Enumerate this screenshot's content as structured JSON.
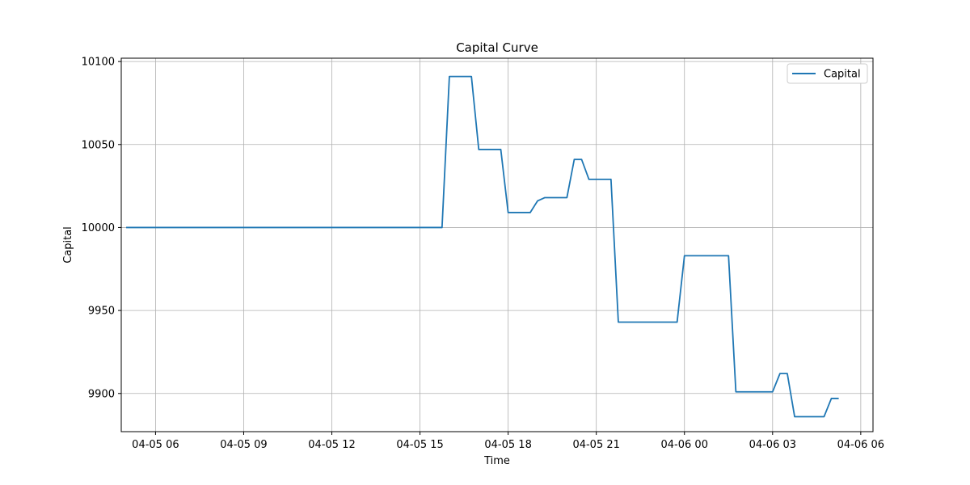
{
  "chart_data": {
    "type": "line",
    "title": "Capital Curve",
    "xlabel": "Time",
    "ylabel": "Capital",
    "xlim": [
      "04-05 04:50",
      "04-06 06:25"
    ],
    "ylim": [
      9877,
      10102
    ],
    "x_ticks": [
      "04-05 06:00",
      "04-05 09:00",
      "04-05 12:00",
      "04-05 15:00",
      "04-05 18:00",
      "04-05 21:00",
      "04-06 00:00",
      "04-06 03:00",
      "04-06 06:00"
    ],
    "x_tick_labels": [
      "04-05 06",
      "04-05 09",
      "04-05 12",
      "04-05 15",
      "04-05 18",
      "04-05 21",
      "04-06 00",
      "04-06 03",
      "04-06 06"
    ],
    "y_ticks": [
      9900,
      9950,
      10000,
      10050,
      10100
    ],
    "y_tick_labels": [
      "9900",
      "9950",
      "10000",
      "10050",
      "10100"
    ],
    "grid": true,
    "legend": "top-right",
    "series": [
      {
        "name": "Capital",
        "color": "#1f77b4",
        "x": [
          "04-05 05:00",
          "04-05 15:30",
          "04-05 15:45",
          "04-05 16:00",
          "04-05 16:15",
          "04-05 16:30",
          "04-05 16:45",
          "04-05 17:00",
          "04-05 17:15",
          "04-05 17:30",
          "04-05 17:45",
          "04-05 18:00",
          "04-05 18:15",
          "04-05 18:30",
          "04-05 18:45",
          "04-05 19:00",
          "04-05 19:15",
          "04-05 19:30",
          "04-05 19:45",
          "04-05 20:00",
          "04-05 20:15",
          "04-05 20:30",
          "04-05 20:45",
          "04-05 21:00",
          "04-05 21:15",
          "04-05 21:30",
          "04-05 21:45",
          "04-05 22:00",
          "04-05 22:15",
          "04-05 22:30",
          "04-05 22:45",
          "04-05 23:00",
          "04-05 23:15",
          "04-05 23:30",
          "04-05 23:45",
          "04-06 00:00",
          "04-06 00:15",
          "04-06 00:30",
          "04-06 00:45",
          "04-06 01:00",
          "04-06 01:15",
          "04-06 01:30",
          "04-06 01:45",
          "04-06 02:00",
          "04-06 02:15",
          "04-06 02:30",
          "04-06 02:45",
          "04-06 03:00",
          "04-06 03:15",
          "04-06 03:30",
          "04-06 03:45",
          "04-06 04:00",
          "04-06 04:15",
          "04-06 04:30",
          "04-06 04:45",
          "04-06 05:00",
          "04-06 05:15"
        ],
        "y": [
          10000,
          10000,
          10000,
          10091,
          10091,
          10091,
          10091,
          10047,
          10047,
          10047,
          10047,
          10009,
          10009,
          10009,
          10009,
          10016,
          10018,
          10018,
          10018,
          10018,
          10041,
          10041,
          10029,
          10029,
          10029,
          10029,
          9943,
          9943,
          9943,
          9943,
          9943,
          9943,
          9943,
          9943,
          9943,
          9983,
          9983,
          9983,
          9983,
          9983,
          9983,
          9983,
          9901,
          9901,
          9901,
          9901,
          9901,
          9901,
          9912,
          9912,
          9886,
          9886,
          9886,
          9886,
          9886,
          9897,
          9897
        ]
      }
    ]
  }
}
